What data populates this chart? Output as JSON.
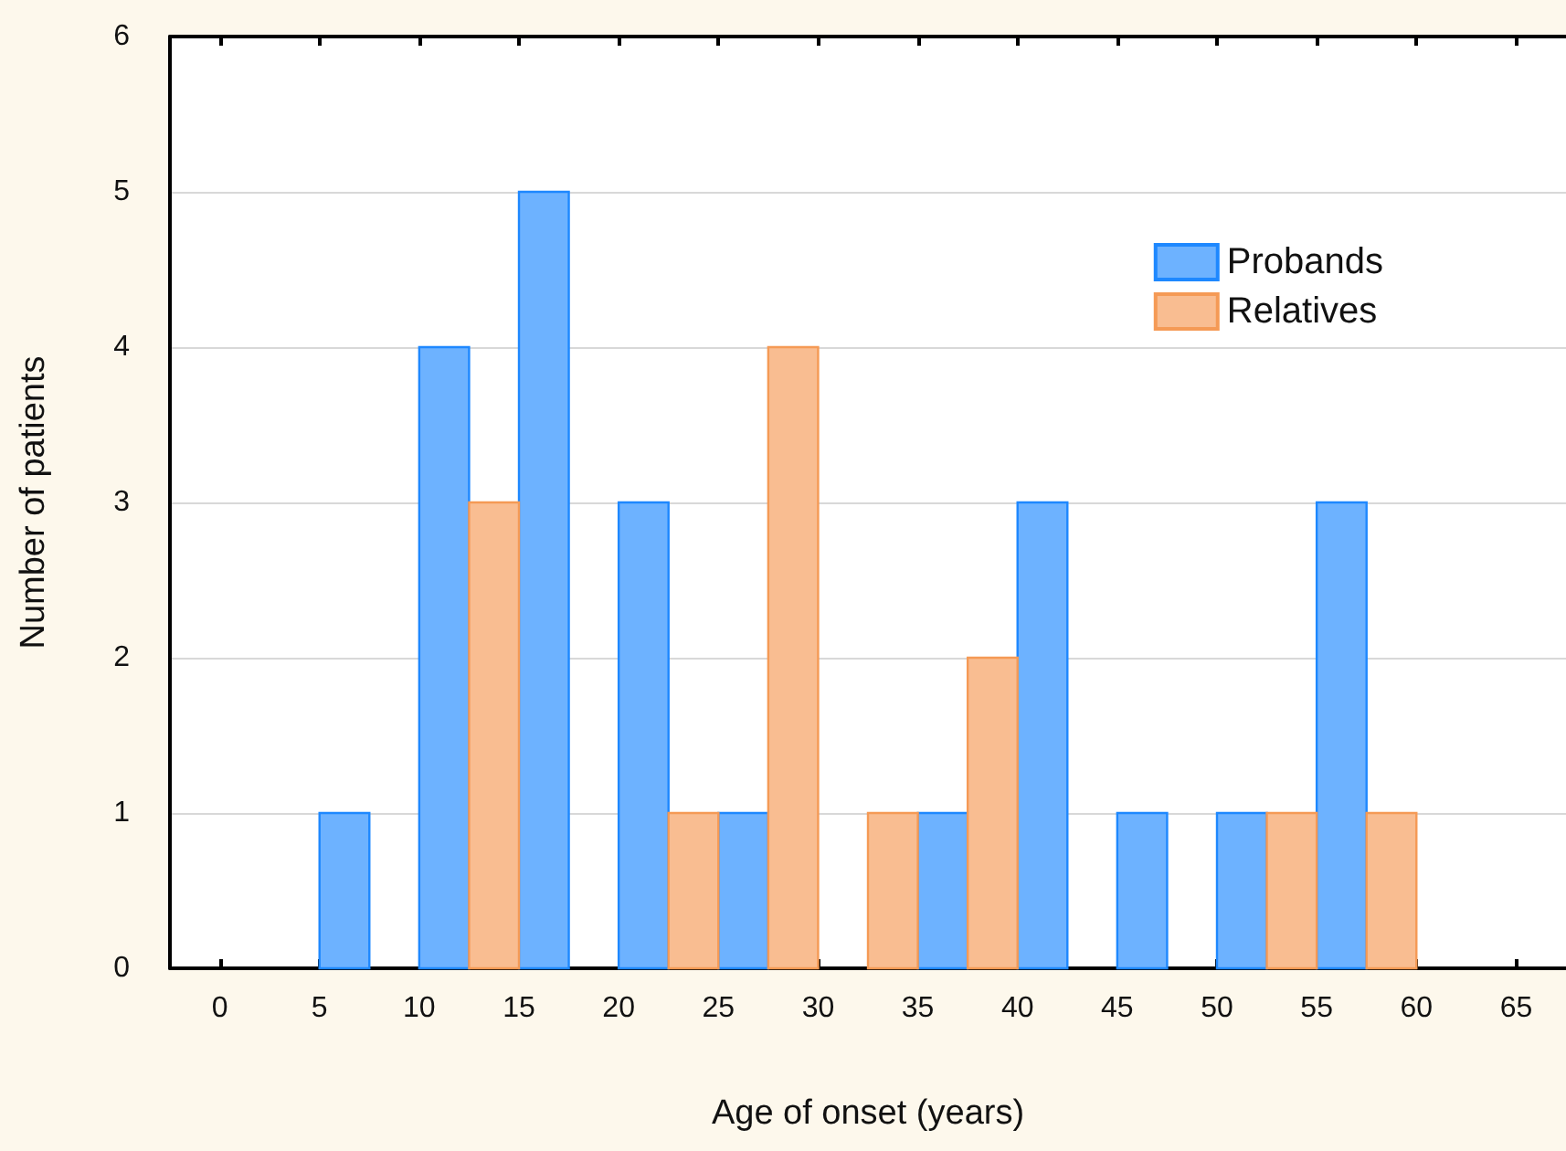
{
  "chart_data": {
    "type": "histogram",
    "xlabel": "Age of onset (years)",
    "ylabel": "Number of patients",
    "bins": [
      5,
      10,
      15,
      20,
      25,
      30,
      35,
      40,
      45,
      50,
      55,
      60
    ],
    "series": [
      {
        "name": "Probands",
        "color": "#1e88ff",
        "values": [
          1,
          4,
          5,
          3,
          1,
          0,
          1,
          3,
          1,
          1,
          3
        ]
      },
      {
        "name": "Relatives",
        "color": "#f59a55",
        "values": [
          0,
          3,
          0,
          1,
          4,
          1,
          2,
          0,
          0,
          1,
          1
        ]
      }
    ],
    "xlim": [
      -2.5,
      67.5
    ],
    "xticks": [
      0,
      5,
      10,
      15,
      20,
      25,
      30,
      35,
      40,
      45,
      50,
      55,
      60,
      65
    ],
    "ylim": [
      0,
      6
    ],
    "yticks": [
      0,
      1,
      2,
      3,
      4,
      5,
      6
    ],
    "grid": "y",
    "legend": "top right"
  }
}
